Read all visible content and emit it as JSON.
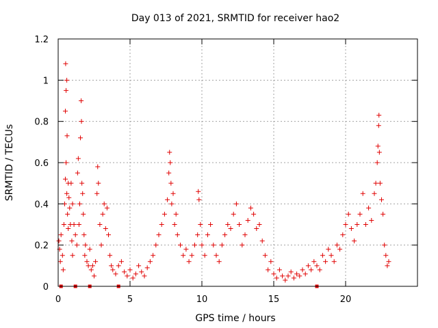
{
  "colors": {
    "series": "#e00000",
    "grid": "#a0a0a0",
    "axis": "#000000",
    "background": "#ffffff"
  },
  "chart_data": {
    "type": "scatter",
    "title": "Day 013 of 2021, SRMTID for receiver hao2",
    "xlabel": "GPS time / hours",
    "ylabel": "SRMTID / TECUs",
    "xlim": [
      0,
      25
    ],
    "ylim": [
      0,
      1.2
    ],
    "xticks": [
      0,
      5,
      10,
      15,
      20
    ],
    "xtick_labels": [
      "0",
      "5",
      "10",
      "15",
      "20"
    ],
    "yticks": [
      0,
      0.2,
      0.4,
      0.6,
      0.8,
      1,
      1.2
    ],
    "ytick_labels": [
      "0",
      "0.2",
      "0.4",
      "0.6",
      "0.8",
      "1",
      "1.2"
    ],
    "grid": true,
    "marker": "plus",
    "series": [
      {
        "name": "SRMTID",
        "points": [
          [
            0.05,
            0.22
          ],
          [
            0.1,
            0.18
          ],
          [
            0.15,
            0.12
          ],
          [
            0.2,
            0.25
          ],
          [
            0.3,
            0.15
          ],
          [
            0.35,
            0.08
          ],
          [
            0.4,
            0.3
          ],
          [
            0.45,
            0.4
          ],
          [
            0.5,
            0.52
          ],
          [
            0.5,
            0.85
          ],
          [
            0.52,
            1.08
          ],
          [
            0.55,
            0.95
          ],
          [
            0.55,
            0.6
          ],
          [
            0.6,
            1.0
          ],
          [
            0.6,
            0.45
          ],
          [
            0.62,
            0.73
          ],
          [
            0.65,
            0.35
          ],
          [
            0.7,
            0.28
          ],
          [
            0.7,
            0.5
          ],
          [
            0.75,
            0.43
          ],
          [
            0.8,
            0.38
          ],
          [
            0.85,
            0.3
          ],
          [
            0.9,
            0.5
          ],
          [
            0.95,
            0.22
          ],
          [
            1.0,
            0.4
          ],
          [
            1.0,
            0.15
          ],
          [
            1.1,
            0.3
          ],
          [
            1.2,
            0.25
          ],
          [
            1.3,
            0.2
          ],
          [
            1.35,
            0.55
          ],
          [
            1.4,
            0.62
          ],
          [
            1.45,
            0.3
          ],
          [
            1.5,
            0.4
          ],
          [
            1.55,
            0.72
          ],
          [
            1.6,
            0.9
          ],
          [
            1.62,
            0.8
          ],
          [
            1.65,
            0.5
          ],
          [
            1.7,
            0.45
          ],
          [
            1.75,
            0.35
          ],
          [
            1.8,
            0.25
          ],
          [
            1.85,
            0.15
          ],
          [
            1.9,
            0.2
          ],
          [
            2.0,
            0.12
          ],
          [
            2.1,
            0.1
          ],
          [
            2.2,
            0.18
          ],
          [
            2.3,
            0.08
          ],
          [
            2.4,
            0.1
          ],
          [
            2.5,
            0.05
          ],
          [
            2.6,
            0.12
          ],
          [
            2.7,
            0.45
          ],
          [
            2.75,
            0.58
          ],
          [
            2.8,
            0.5
          ],
          [
            2.9,
            0.3
          ],
          [
            3.0,
            0.2
          ],
          [
            3.1,
            0.35
          ],
          [
            3.2,
            0.4
          ],
          [
            3.3,
            0.28
          ],
          [
            3.4,
            0.38
          ],
          [
            3.5,
            0.25
          ],
          [
            3.6,
            0.15
          ],
          [
            3.7,
            0.1
          ],
          [
            3.8,
            0.08
          ],
          [
            4.0,
            0.06
          ],
          [
            4.2,
            0.1
          ],
          [
            4.4,
            0.12
          ],
          [
            4.6,
            0.07
          ],
          [
            4.8,
            0.05
          ],
          [
            5.0,
            0.08
          ],
          [
            5.2,
            0.04
          ],
          [
            5.4,
            0.06
          ],
          [
            5.6,
            0.1
          ],
          [
            5.8,
            0.07
          ],
          [
            6.0,
            0.05
          ],
          [
            6.2,
            0.09
          ],
          [
            6.4,
            0.12
          ],
          [
            6.6,
            0.15
          ],
          [
            6.8,
            0.2
          ],
          [
            7.0,
            0.25
          ],
          [
            7.2,
            0.3
          ],
          [
            7.4,
            0.35
          ],
          [
            7.6,
            0.42
          ],
          [
            7.7,
            0.55
          ],
          [
            7.75,
            0.65
          ],
          [
            7.8,
            0.6
          ],
          [
            7.85,
            0.5
          ],
          [
            7.9,
            0.4
          ],
          [
            8.0,
            0.45
          ],
          [
            8.1,
            0.3
          ],
          [
            8.2,
            0.35
          ],
          [
            8.3,
            0.25
          ],
          [
            8.5,
            0.2
          ],
          [
            8.7,
            0.15
          ],
          [
            8.9,
            0.18
          ],
          [
            9.1,
            0.12
          ],
          [
            9.3,
            0.15
          ],
          [
            9.5,
            0.2
          ],
          [
            9.7,
            0.25
          ],
          [
            9.75,
            0.46
          ],
          [
            9.8,
            0.42
          ],
          [
            9.9,
            0.3
          ],
          [
            10.0,
            0.2
          ],
          [
            10.2,
            0.15
          ],
          [
            10.4,
            0.25
          ],
          [
            10.6,
            0.3
          ],
          [
            10.8,
            0.2
          ],
          [
            11.0,
            0.15
          ],
          [
            11.2,
            0.12
          ],
          [
            11.4,
            0.2
          ],
          [
            11.6,
            0.25
          ],
          [
            11.8,
            0.3
          ],
          [
            12.0,
            0.28
          ],
          [
            12.2,
            0.35
          ],
          [
            12.4,
            0.4
          ],
          [
            12.6,
            0.3
          ],
          [
            12.8,
            0.2
          ],
          [
            13.0,
            0.25
          ],
          [
            13.2,
            0.32
          ],
          [
            13.4,
            0.38
          ],
          [
            13.6,
            0.35
          ],
          [
            13.8,
            0.28
          ],
          [
            14.0,
            0.3
          ],
          [
            14.2,
            0.22
          ],
          [
            14.4,
            0.15
          ],
          [
            14.6,
            0.08
          ],
          [
            14.8,
            0.12
          ],
          [
            15.0,
            0.06
          ],
          [
            15.2,
            0.04
          ],
          [
            15.4,
            0.08
          ],
          [
            15.6,
            0.05
          ],
          [
            15.8,
            0.03
          ],
          [
            16.0,
            0.05
          ],
          [
            16.2,
            0.07
          ],
          [
            16.4,
            0.04
          ],
          [
            16.6,
            0.06
          ],
          [
            16.8,
            0.05
          ],
          [
            17.0,
            0.08
          ],
          [
            17.2,
            0.06
          ],
          [
            17.4,
            0.1
          ],
          [
            17.6,
            0.08
          ],
          [
            17.8,
            0.12
          ],
          [
            18.0,
            0.1
          ],
          [
            18.2,
            0.08
          ],
          [
            18.4,
            0.15
          ],
          [
            18.6,
            0.12
          ],
          [
            18.8,
            0.18
          ],
          [
            19.0,
            0.15
          ],
          [
            19.2,
            0.12
          ],
          [
            19.4,
            0.2
          ],
          [
            19.6,
            0.18
          ],
          [
            19.8,
            0.25
          ],
          [
            20.0,
            0.3
          ],
          [
            20.2,
            0.35
          ],
          [
            20.4,
            0.28
          ],
          [
            20.6,
            0.22
          ],
          [
            20.8,
            0.3
          ],
          [
            21.0,
            0.35
          ],
          [
            21.2,
            0.45
          ],
          [
            21.4,
            0.3
          ],
          [
            21.6,
            0.38
          ],
          [
            21.8,
            0.32
          ],
          [
            22.0,
            0.45
          ],
          [
            22.1,
            0.5
          ],
          [
            22.2,
            0.6
          ],
          [
            22.25,
            0.68
          ],
          [
            22.3,
            0.78
          ],
          [
            22.32,
            0.83
          ],
          [
            22.35,
            0.65
          ],
          [
            22.4,
            0.5
          ],
          [
            22.5,
            0.42
          ],
          [
            22.6,
            0.35
          ],
          [
            22.7,
            0.2
          ],
          [
            22.8,
            0.15
          ],
          [
            22.9,
            0.1
          ],
          [
            23.0,
            0.12
          ]
        ]
      }
    ],
    "baseline_markers_x": [
      0.2,
      1.2,
      2.2,
      4.2,
      18.0
    ]
  }
}
